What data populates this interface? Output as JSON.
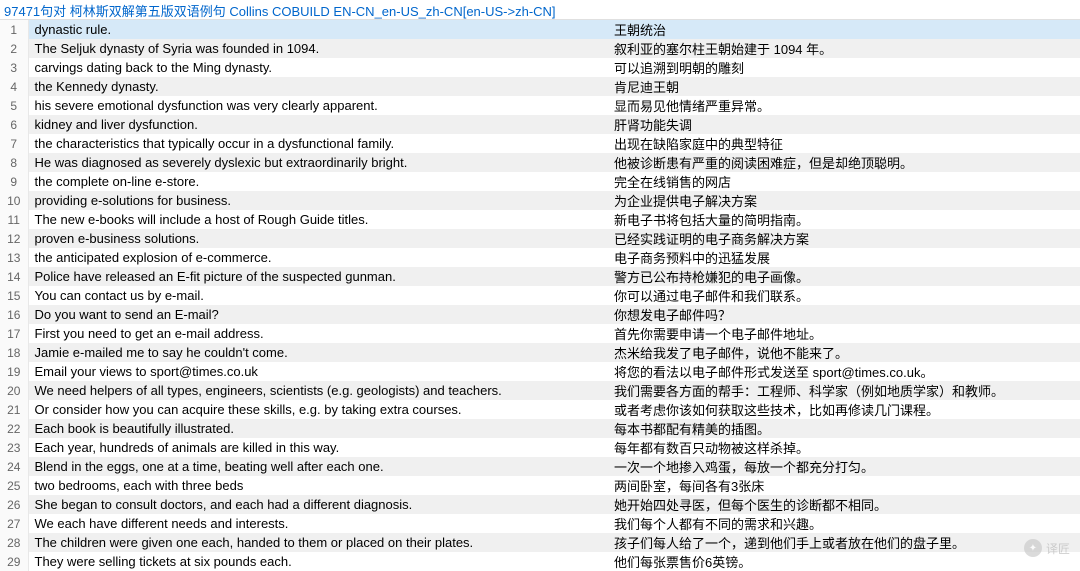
{
  "header": {
    "text": "97471句对 柯林斯双解第五版双语例句 Collins COBUILD EN-CN_en-US_zh-CN[en-US->zh-CN]"
  },
  "selected_row": 1,
  "rows": [
    {
      "n": 1,
      "en": "dynastic rule.",
      "cn": "王朝统治"
    },
    {
      "n": 2,
      "en": "The Seljuk dynasty of Syria was founded in 1094.",
      "cn": "叙利亚的塞尔柱王朝始建于 1094 年。"
    },
    {
      "n": 3,
      "en": "carvings dating back to the Ming dynasty.",
      "cn": "可以追溯到明朝的雕刻"
    },
    {
      "n": 4,
      "en": "the Kennedy dynasty.",
      "cn": "肯尼迪王朝"
    },
    {
      "n": 5,
      "en": "his severe emotional dysfunction was very clearly apparent.",
      "cn": "显而易见他情绪严重异常。"
    },
    {
      "n": 6,
      "en": "kidney and liver dysfunction.",
      "cn": "肝肾功能失调"
    },
    {
      "n": 7,
      "en": "the characteristics that typically occur in a dysfunctional family.",
      "cn": "出现在缺陷家庭中的典型特征"
    },
    {
      "n": 8,
      "en": "He was diagnosed as severely dyslexic but extraordinarily bright.",
      "cn": "他被诊断患有严重的阅读困难症，但是却绝顶聪明。"
    },
    {
      "n": 9,
      "en": "the complete on-line e-store.",
      "cn": "完全在线销售的网店"
    },
    {
      "n": 10,
      "en": "providing e-solutions for business.",
      "cn": "为企业提供电子解决方案"
    },
    {
      "n": 11,
      "en": "The new e-books will include a host of Rough Guide titles.",
      "cn": "新电子书将包括大量的简明指南。"
    },
    {
      "n": 12,
      "en": "proven e-business solutions.",
      "cn": "已经实践证明的电子商务解决方案"
    },
    {
      "n": 13,
      "en": "the anticipated explosion of e-commerce.",
      "cn": "电子商务预料中的迅猛发展"
    },
    {
      "n": 14,
      "en": "Police have released an E-fit picture of the suspected gunman.",
      "cn": "警方已公布持枪嫌犯的电子画像。"
    },
    {
      "n": 15,
      "en": "You can contact us by e-mail.",
      "cn": "你可以通过电子邮件和我们联系。"
    },
    {
      "n": 16,
      "en": "Do you want to send an E-mail?",
      "cn": "你想发电子邮件吗？"
    },
    {
      "n": 17,
      "en": "First you need to get an e-mail address.",
      "cn": "首先你需要申请一个电子邮件地址。"
    },
    {
      "n": 18,
      "en": "Jamie e-mailed me to say he couldn't come.",
      "cn": "杰米给我发了电子邮件，说他不能来了。"
    },
    {
      "n": 19,
      "en": "Email your views to sport@times.co.uk",
      "cn": "将您的看法以电子邮件形式发送至 sport@times.co.uk。"
    },
    {
      "n": 20,
      "en": "We need helpers of all types, engineers, scientists (e.g. geologists) and teachers.",
      "cn": "我们需要各方面的帮手：工程师、科学家（例如地质学家）和教师。"
    },
    {
      "n": 21,
      "en": "Or consider how you can acquire these skills, e.g. by taking extra courses.",
      "cn": "或者考虑你该如何获取这些技术，比如再修读几门课程。"
    },
    {
      "n": 22,
      "en": "Each book is beautifully illustrated.",
      "cn": "每本书都配有精美的插图。"
    },
    {
      "n": 23,
      "en": "Each year, hundreds of animals are killed in this way.",
      "cn": "每年都有数百只动物被这样杀掉。"
    },
    {
      "n": 24,
      "en": "Blend in the eggs, one at a time, beating well after each one.",
      "cn": "一次一个地掺入鸡蛋，每放一个都充分打匀。"
    },
    {
      "n": 25,
      "en": "two bedrooms, each with three beds",
      "cn": "两间卧室，每间各有3张床"
    },
    {
      "n": 26,
      "en": "She began to consult doctors, and each had a different diagnosis.",
      "cn": "她开始四处寻医，但每个医生的诊断都不相同。"
    },
    {
      "n": 27,
      "en": "We each have different needs and interests.",
      "cn": "我们每个人都有不同的需求和兴趣。"
    },
    {
      "n": 28,
      "en": "The children were given one each, handed to them or placed on their plates.",
      "cn": "孩子们每人给了一个，递到他们手上或者放在他们的盘子里。"
    },
    {
      "n": 29,
      "en": "They were selling tickets at six pounds each.",
      "cn": "他们每张票售价6英镑。"
    }
  ],
  "watermark": {
    "label": "译匠"
  }
}
